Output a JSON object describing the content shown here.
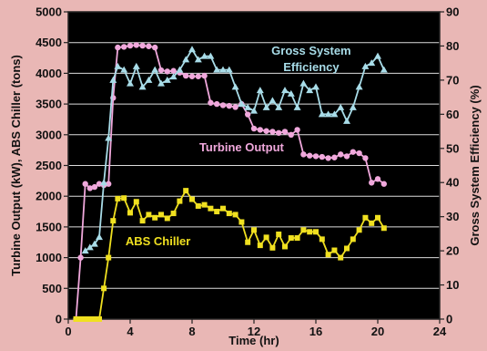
{
  "chart_data": {
    "type": "line",
    "xlabel": "Time (hr)",
    "ylabel_left": "Turbine Output (kW), ABS Chiller (tons)",
    "ylabel_right": "Gross System Efficiency (%)",
    "xlim": [
      0,
      24
    ],
    "ylim_left": [
      0,
      5000
    ],
    "ylim_right": [
      0,
      90
    ],
    "x_ticks": [
      "0",
      "4",
      "8",
      "12",
      "16",
      "20",
      "24"
    ],
    "y_left_ticks": [
      "0",
      "500",
      "1000",
      "1500",
      "2000",
      "2500",
      "3000",
      "3500",
      "4000",
      "4500",
      "5000"
    ],
    "y_right_ticks": [
      "0",
      "10",
      "20",
      "30",
      "40",
      "50",
      "60",
      "70",
      "80",
      "90"
    ],
    "grid": "horizontal",
    "background": "#000000",
    "series": [
      {
        "name": "Turbine Output",
        "axis": "left",
        "color": "#f0a8dc",
        "marker": "circle",
        "x": [
          0.5,
          0.8,
          1.1,
          1.4,
          1.7,
          2.0,
          2.3,
          2.6,
          2.9,
          3.2,
          3.6,
          4.0,
          4.4,
          4.8,
          5.2,
          5.6,
          6.0,
          6.4,
          6.8,
          7.2,
          7.6,
          8.0,
          8.4,
          8.8,
          9.2,
          9.6,
          10.0,
          10.4,
          10.8,
          11.2,
          11.6,
          12.0,
          12.4,
          12.8,
          13.2,
          13.6,
          14.0,
          14.4,
          14.8,
          15.2,
          15.6,
          16.0,
          16.4,
          16.8,
          17.2,
          17.6,
          18.0,
          18.4,
          18.8,
          19.2,
          19.6,
          20.0,
          20.4
        ],
        "y": [
          0,
          1000,
          2200,
          2130,
          2150,
          2200,
          2180,
          2200,
          3600,
          4420,
          4430,
          4450,
          4460,
          4450,
          4440,
          4420,
          4050,
          4030,
          4040,
          4010,
          3960,
          3950,
          3950,
          3960,
          3520,
          3500,
          3480,
          3470,
          3450,
          3500,
          3330,
          3100,
          3080,
          3060,
          3050,
          3030,
          3050,
          3000,
          3080,
          2680,
          2660,
          2650,
          2640,
          2620,
          2630,
          2680,
          2650,
          2720,
          2700,
          2620,
          2220,
          2280,
          2200
        ]
      },
      {
        "name": "Gross System Efficiency",
        "axis": "right",
        "color": "#a8dce8",
        "marker": "triangle",
        "x": [
          1.1,
          1.4,
          1.7,
          2.0,
          2.3,
          2.6,
          2.9,
          3.2,
          3.6,
          4.0,
          4.4,
          4.8,
          5.2,
          5.6,
          6.0,
          6.4,
          6.8,
          7.2,
          7.6,
          8.0,
          8.4,
          8.8,
          9.2,
          9.6,
          10.0,
          10.4,
          10.8,
          11.2,
          11.6,
          12.0,
          12.4,
          12.8,
          13.2,
          13.6,
          14.0,
          14.4,
          14.8,
          15.2,
          15.6,
          16.0,
          16.4,
          16.8,
          17.2,
          17.6,
          18.0,
          18.4,
          18.8,
          19.2,
          19.6,
          20.0,
          20.4
        ],
        "y": [
          20,
          21,
          22,
          24,
          40,
          53,
          70,
          74,
          73,
          69,
          74,
          68,
          70,
          73,
          69,
          70,
          71,
          73,
          76,
          79,
          76,
          77,
          77,
          73,
          73,
          73,
          68,
          63,
          62,
          61,
          67,
          62,
          64,
          62,
          67,
          66,
          62,
          69,
          67,
          68,
          60,
          60,
          60,
          62,
          58,
          62,
          68,
          74,
          75,
          77,
          73
        ]
      },
      {
        "name": "ABS Chiller",
        "axis": "left",
        "color": "#f0e020",
        "marker": "square",
        "x": [
          0.5,
          0.8,
          1.1,
          1.4,
          1.7,
          2.0,
          2.3,
          2.6,
          2.9,
          3.2,
          3.6,
          4.0,
          4.4,
          4.8,
          5.2,
          5.6,
          6.0,
          6.4,
          6.8,
          7.2,
          7.6,
          8.0,
          8.4,
          8.8,
          9.2,
          9.6,
          10.0,
          10.4,
          10.8,
          11.2,
          11.6,
          12.0,
          12.4,
          12.8,
          13.2,
          13.6,
          14.0,
          14.4,
          14.8,
          15.2,
          15.6,
          16.0,
          16.4,
          16.8,
          17.2,
          17.6,
          18.0,
          18.4,
          18.8,
          19.2,
          19.6,
          20.0,
          20.4
        ],
        "y": [
          0,
          0,
          0,
          0,
          0,
          0,
          500,
          1000,
          1600,
          1960,
          1970,
          1730,
          1910,
          1600,
          1700,
          1650,
          1700,
          1640,
          1720,
          1920,
          2090,
          1950,
          1840,
          1860,
          1800,
          1750,
          1800,
          1720,
          1700,
          1580,
          1250,
          1450,
          1200,
          1330,
          1160,
          1380,
          1180,
          1320,
          1320,
          1450,
          1420,
          1420,
          1300,
          1050,
          1120,
          1000,
          1150,
          1300,
          1450,
          1650,
          1560,
          1650,
          1480
        ]
      }
    ],
    "annotations": [
      {
        "text": "Gross System",
        "series": "Gross System Efficiency",
        "x": 15.7,
        "y_left": 4300,
        "align": "middle"
      },
      {
        "text": "Efficiency",
        "series": "Gross System Efficiency",
        "x": 15.7,
        "y_left": 4035,
        "align": "middle"
      },
      {
        "text": "Turbine Output",
        "series": "Turbine Output",
        "x": 11.2,
        "y_left": 2730,
        "align": "middle"
      },
      {
        "text": "ABS Chiller",
        "series": "ABS Chiller",
        "x": 5.8,
        "y_left": 1200,
        "align": "middle"
      }
    ]
  }
}
